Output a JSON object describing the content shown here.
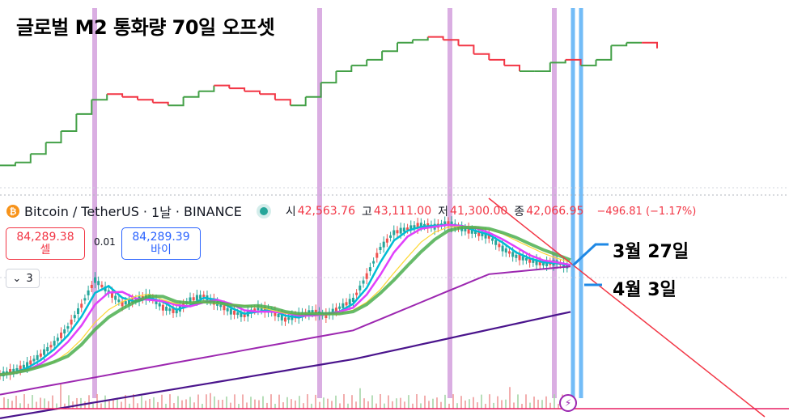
{
  "title": "글로벌 M2 통화량 70일 오프셋",
  "symbol": {
    "coin_icon": "bitcoin-icon",
    "name": "Bitcoin",
    "slash": "/",
    "quote": "TetherUS",
    "interval": "1날",
    "exchange": "BINANCE",
    "dot": "·"
  },
  "ohlc": {
    "open_label": "시",
    "open": "42,563.76",
    "high_label": "고",
    "high": "43,111.00",
    "low_label": "저",
    "low": "41,300.00",
    "close_label": "종",
    "close": "42,066.95",
    "change": "−496.81 (−1.17%)"
  },
  "trade": {
    "sell_price": "84,289.38",
    "sell_label": "셀",
    "spread": "0.01",
    "buy_price": "84,289.39",
    "buy_label": "바이"
  },
  "stepper": {
    "value": "3",
    "icon": "chevron-down-icon"
  },
  "annotations": {
    "a1": "3월 27일",
    "a2": "4월 3일"
  },
  "colors": {
    "m2_up": "#43a047",
    "m2_down": "#f23645",
    "purple_vline": "#ce93d8",
    "blue_vline": "#64b5f6",
    "trend": "#f23645",
    "ma_green": "#4caf50",
    "ma_magenta": "#e040fb",
    "ma_cyan": "#00bcd4",
    "ma_purple": "#9c27b0",
    "ma_darkpurple": "#4a148c",
    "ma_yellow": "#fdd835"
  },
  "chart_data": [
    {
      "type": "line",
      "title": "글로벌 M2 통화량 70일 오프셋",
      "series": [
        {
          "values": [
            100,
            101,
            104,
            108,
            112,
            118,
            123,
            125,
            124,
            123,
            122,
            121,
            124,
            126,
            128,
            127,
            126,
            125,
            123,
            121,
            124,
            129,
            133,
            135,
            137,
            140,
            143,
            144,
            145,
            144,
            142,
            139,
            137,
            135,
            133,
            133,
            136,
            137,
            135,
            137,
            142,
            143,
            143,
            141
          ]
        }
      ]
    },
    {
      "type": "line",
      "series": [
        {
          "values": [
            20,
            22,
            25,
            30,
            36,
            44,
            55,
            68,
            62,
            56,
            58,
            60,
            54,
            52,
            58,
            60,
            56,
            52,
            50,
            54,
            52,
            48,
            50,
            52,
            50,
            54,
            58,
            70,
            84,
            92,
            94,
            96,
            95,
            97,
            94,
            92,
            90,
            84,
            80,
            78,
            76,
            77,
            74
          ]
        }
      ]
    }
  ]
}
